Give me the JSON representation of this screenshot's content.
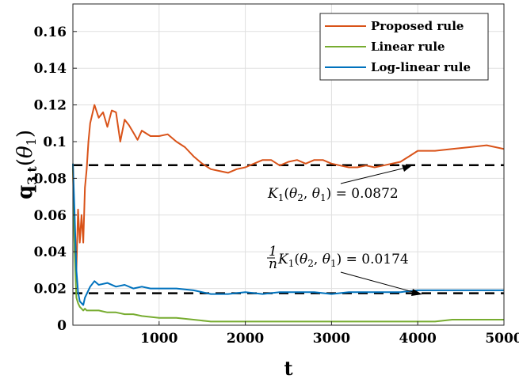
{
  "chart_data": {
    "type": "line",
    "xlabel": "t",
    "ylabel": "q3,t(θ1)",
    "xlim": [
      0,
      5000
    ],
    "ylim": [
      0,
      0.175
    ],
    "xticks": [
      1000,
      2000,
      3000,
      4000,
      5000
    ],
    "xtick_labels": [
      "1000",
      "2000",
      "3000",
      "4000",
      "5000"
    ],
    "yticks": [
      0,
      0.02,
      0.04,
      0.06,
      0.08,
      0.1,
      0.12,
      0.14,
      0.16
    ],
    "ytick_labels": [
      "0",
      "0.02",
      "0.04",
      "0.06",
      "0.08",
      "0.1",
      "0.12",
      "0.14",
      "0.16"
    ],
    "grid": true,
    "legend_position": "top-right",
    "series": [
      {
        "name": "Proposed rule",
        "color": "#d95319",
        "x": [
          0,
          20,
          40,
          60,
          80,
          100,
          120,
          140,
          160,
          180,
          200,
          250,
          300,
          350,
          400,
          450,
          500,
          550,
          600,
          650,
          700,
          750,
          800,
          900,
          1000,
          1100,
          1200,
          1300,
          1400,
          1500,
          1600,
          1700,
          1800,
          1900,
          2000,
          2100,
          2200,
          2300,
          2400,
          2500,
          2600,
          2700,
          2800,
          2900,
          3000,
          3100,
          3200,
          3300,
          3400,
          3500,
          3600,
          3700,
          3800,
          3900,
          4000,
          4200,
          4400,
          4600,
          4800,
          5000
        ],
        "y": [
          0.086,
          0.04,
          0.03,
          0.063,
          0.045,
          0.06,
          0.045,
          0.075,
          0.085,
          0.1,
          0.11,
          0.12,
          0.113,
          0.116,
          0.108,
          0.117,
          0.116,
          0.1,
          0.112,
          0.109,
          0.105,
          0.101,
          0.106,
          0.103,
          0.103,
          0.104,
          0.1,
          0.097,
          0.092,
          0.088,
          0.085,
          0.084,
          0.083,
          0.085,
          0.086,
          0.088,
          0.09,
          0.09,
          0.087,
          0.089,
          0.09,
          0.088,
          0.09,
          0.09,
          0.088,
          0.087,
          0.086,
          0.086,
          0.087,
          0.086,
          0.087,
          0.088,
          0.089,
          0.092,
          0.095,
          0.095,
          0.096,
          0.097,
          0.098,
          0.096
        ]
      },
      {
        "name": "Linear rule",
        "color": "#77ac30",
        "x": [
          0,
          20,
          40,
          60,
          80,
          100,
          120,
          140,
          160,
          180,
          200,
          300,
          400,
          500,
          600,
          700,
          800,
          1000,
          1200,
          1400,
          1600,
          1800,
          2000,
          2200,
          2400,
          2600,
          2800,
          3000,
          3200,
          3400,
          3600,
          3800,
          4000,
          4200,
          4400,
          4600,
          4800,
          5000
        ],
        "y": [
          0.088,
          0.04,
          0.015,
          0.012,
          0.01,
          0.009,
          0.008,
          0.009,
          0.008,
          0.008,
          0.008,
          0.008,
          0.007,
          0.007,
          0.006,
          0.006,
          0.005,
          0.004,
          0.004,
          0.003,
          0.002,
          0.002,
          0.002,
          0.002,
          0.002,
          0.002,
          0.002,
          0.002,
          0.002,
          0.002,
          0.002,
          0.002,
          0.002,
          0.002,
          0.003,
          0.003,
          0.003,
          0.003
        ]
      },
      {
        "name": "Log-linear rule",
        "color": "#0072bd",
        "x": [
          0,
          20,
          40,
          60,
          80,
          100,
          120,
          140,
          160,
          180,
          200,
          250,
          300,
          400,
          500,
          600,
          700,
          800,
          900,
          1000,
          1200,
          1400,
          1600,
          1800,
          2000,
          2200,
          2400,
          2600,
          2800,
          3000,
          3200,
          3400,
          3600,
          3800,
          4000,
          4200,
          4400,
          4600,
          4800,
          5000
        ],
        "y": [
          0.088,
          0.06,
          0.03,
          0.018,
          0.013,
          0.012,
          0.011,
          0.015,
          0.017,
          0.019,
          0.021,
          0.024,
          0.022,
          0.023,
          0.021,
          0.022,
          0.02,
          0.021,
          0.02,
          0.02,
          0.02,
          0.019,
          0.017,
          0.017,
          0.018,
          0.017,
          0.018,
          0.018,
          0.018,
          0.017,
          0.018,
          0.018,
          0.018,
          0.018,
          0.019,
          0.019,
          0.019,
          0.019,
          0.019,
          0.019
        ]
      }
    ],
    "reference_lines": [
      {
        "y": 0.0872,
        "style": "dashed",
        "color": "#000000"
      },
      {
        "y": 0.0174,
        "style": "dashed",
        "color": "#000000"
      }
    ],
    "annotations": [
      {
        "text": "K1(θ2, θ1) = 0.0872",
        "arrow_to": [
          4000,
          0.0872
        ]
      },
      {
        "text": "(1/n) K1(θ2, θ1) = 0.0174",
        "arrow_to": [
          4200,
          0.0174
        ]
      }
    ]
  }
}
